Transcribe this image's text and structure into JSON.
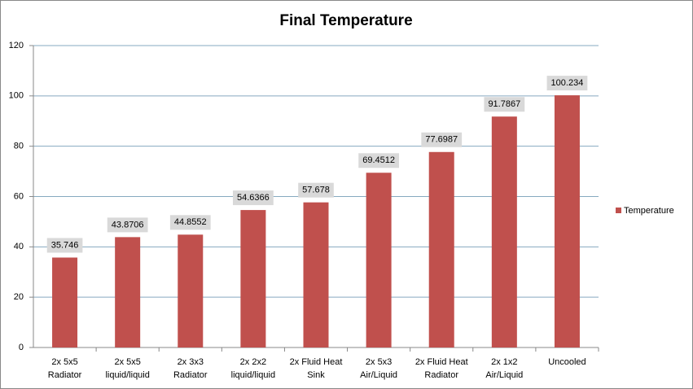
{
  "chart_data": {
    "type": "bar",
    "title": "Final Temperature",
    "categories": [
      [
        "2x 5x5",
        "Radiator"
      ],
      [
        "2x 5x5",
        "liquid/liquid"
      ],
      [
        "2x 3x3",
        "Radiator"
      ],
      [
        "2x 2x2",
        "liquid/liquid"
      ],
      [
        "2x Fluid Heat",
        "Sink"
      ],
      [
        "2x 5x3",
        "Air/Liquid"
      ],
      [
        "2x Fluid Heat",
        "Radiator"
      ],
      [
        "2x 1x2",
        "Air/Liquid"
      ],
      [
        "Uncooled"
      ]
    ],
    "series": [
      {
        "name": "Temperature",
        "color": "#c0504d",
        "values": [
          35.746,
          43.8706,
          44.8552,
          54.6366,
          57.678,
          69.4512,
          77.6987,
          91.7867,
          100.234
        ]
      }
    ],
    "ylim": [
      0,
      120
    ],
    "yticks": [
      0,
      20,
      40,
      60,
      80,
      100,
      120
    ],
    "grid": true,
    "legend": "right"
  }
}
